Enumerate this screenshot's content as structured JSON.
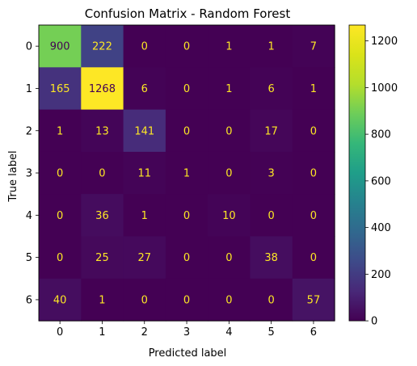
{
  "chart_data": {
    "type": "heatmap",
    "title": "Confusion Matrix - Random Forest",
    "xlabel": "Predicted label",
    "ylabel": "True label",
    "x_tick_labels": [
      "0",
      "1",
      "2",
      "3",
      "4",
      "5",
      "6"
    ],
    "y_tick_labels": [
      "0",
      "1",
      "2",
      "3",
      "4",
      "5",
      "6"
    ],
    "matrix": [
      [
        900,
        222,
        0,
        0,
        1,
        1,
        7
      ],
      [
        165,
        1268,
        6,
        0,
        1,
        6,
        1
      ],
      [
        1,
        13,
        141,
        0,
        0,
        17,
        0
      ],
      [
        0,
        0,
        11,
        1,
        0,
        3,
        0
      ],
      [
        0,
        36,
        1,
        0,
        10,
        0,
        0
      ],
      [
        0,
        25,
        27,
        0,
        0,
        38,
        0
      ],
      [
        40,
        1,
        0,
        0,
        0,
        0,
        57
      ]
    ],
    "colormap": "viridis",
    "value_range": [
      0,
      1268
    ],
    "colorbar_ticks": [
      0,
      200,
      400,
      600,
      800,
      1000,
      1200
    ],
    "text_color_light": "#fde725",
    "text_color_dark": "#440154",
    "grid": false
  }
}
